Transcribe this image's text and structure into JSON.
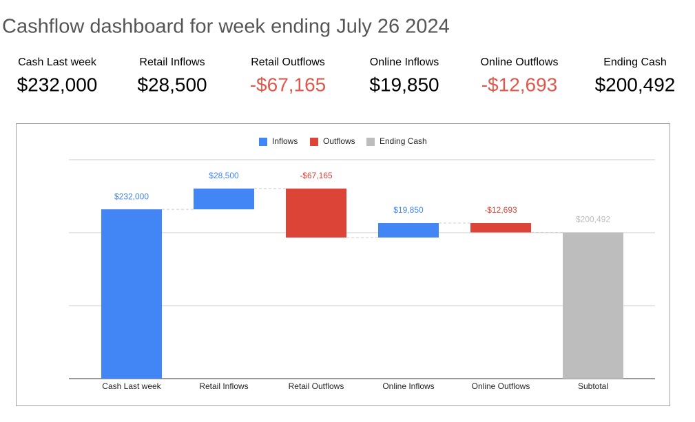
{
  "header": {
    "title": "Cashflow dashboard for week ending July 26 2024"
  },
  "kpis": [
    {
      "label": "Cash Last week",
      "value": "$232,000",
      "color": "#000000"
    },
    {
      "label": "Retail Inflows",
      "value": "$28,500",
      "color": "#000000"
    },
    {
      "label": "Retail Outflows",
      "value": "-$67,165",
      "color": "#e0584c"
    },
    {
      "label": "Online Inflows",
      "value": "$19,850",
      "color": "#000000"
    },
    {
      "label": "Online Outflows",
      "value": "-$12,693",
      "color": "#e0584c"
    },
    {
      "label": "Ending Cash",
      "value": "$200,492",
      "color": "#000000"
    }
  ],
  "chart_data": {
    "type": "waterfall",
    "categories": [
      "Cash Last week",
      "Retail Inflows",
      "Retail Outflows",
      "Online Inflows",
      "Online Outflows",
      "Subtotal"
    ],
    "values": [
      232000,
      28500,
      -67165,
      19850,
      -12693,
      200492
    ],
    "value_labels": [
      "$232,000",
      "$28,500",
      "-$67,165",
      "$19,850",
      "-$12,693",
      "$200,492"
    ],
    "totals": [
      false,
      false,
      false,
      false,
      false,
      true
    ],
    "legend": [
      {
        "name": "Inflows",
        "color": "#4285f4"
      },
      {
        "name": "Outflows",
        "color": "#db4437"
      },
      {
        "name": "Ending Cash",
        "color": "#bdbdbd"
      }
    ],
    "ylim": [
      0,
      300000
    ],
    "yticks": [
      0,
      100000,
      200000,
      300000
    ],
    "grid": true
  }
}
